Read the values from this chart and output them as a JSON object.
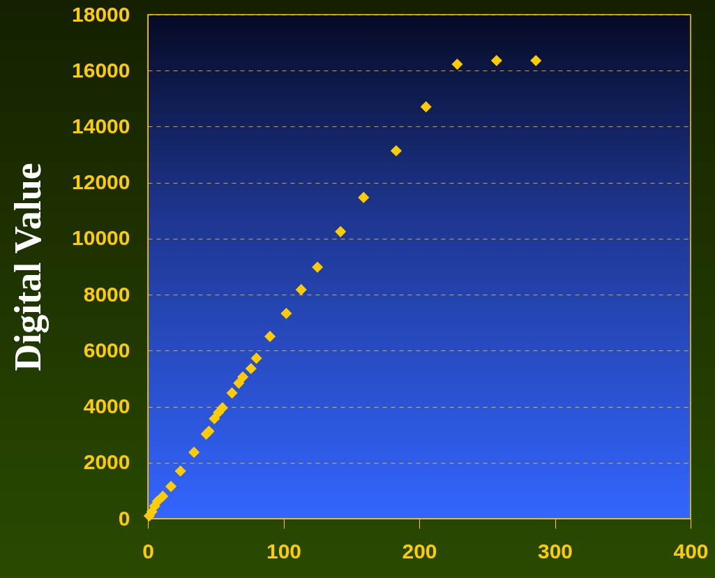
{
  "chart_data": {
    "type": "scatter",
    "ylabel": "Digital Value",
    "x": [
      1,
      3,
      5,
      7,
      11,
      17,
      24,
      34,
      43,
      45,
      49,
      52,
      55,
      62,
      67,
      70,
      76,
      80,
      90,
      102,
      113,
      125,
      142,
      159,
      183,
      205,
      228,
      257,
      286
    ],
    "values": [
      100,
      250,
      450,
      620,
      800,
      1150,
      1700,
      2370,
      3020,
      3120,
      3570,
      3790,
      3960,
      4490,
      4840,
      5060,
      5360,
      5730,
      6510,
      7330,
      8180,
      8980,
      10250,
      11470,
      13140,
      14710,
      16230,
      16360,
      16360
    ],
    "color": "#ffcc00",
    "marker": "diamond",
    "grid": "y",
    "xlim": [
      0,
      400
    ],
    "xticks": [
      0,
      100,
      200,
      300,
      400
    ],
    "ylim": [
      0,
      18000
    ],
    "yticks": [
      0,
      2000,
      4000,
      6000,
      8000,
      10000,
      12000,
      14000,
      16000,
      18000
    ]
  }
}
